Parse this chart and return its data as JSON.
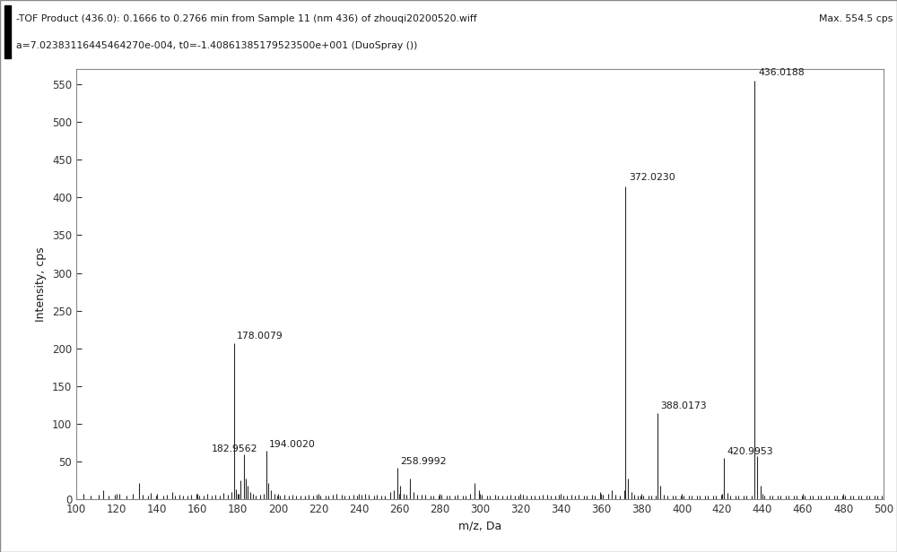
{
  "title_line1": "-TOF Product (436.0): 0.1666 to 0.2766 min from Sample 11 (nm 436) of zhouqi20200520.wiff",
  "title_line2": "a=7.02383116445464270e-004, t0=-1.40861385179523500e+001 (DuoSpray ())",
  "max_label": "Max. 554.5 cps",
  "xlabel": "m/z, Da",
  "ylabel": "Intensity, cps",
  "xlim": [
    100,
    500
  ],
  "ylim": [
    0,
    570
  ],
  "yticks": [
    0,
    50,
    100,
    150,
    200,
    250,
    300,
    350,
    400,
    450,
    500,
    550
  ],
  "xticks": [
    100,
    120,
    140,
    160,
    180,
    200,
    220,
    240,
    260,
    280,
    300,
    320,
    340,
    360,
    380,
    400,
    420,
    440,
    460,
    480,
    500
  ],
  "background_color": "#ffffff",
  "header_color": "#f0f0f0",
  "line_color": "#2a2a2a",
  "peaks": [
    {
      "mz": 103.5,
      "intensity": 8,
      "label": null
    },
    {
      "mz": 107.0,
      "intensity": 5,
      "label": null
    },
    {
      "mz": 111.0,
      "intensity": 7,
      "label": null
    },
    {
      "mz": 113.5,
      "intensity": 13,
      "label": null
    },
    {
      "mz": 116.0,
      "intensity": 5,
      "label": null
    },
    {
      "mz": 119.0,
      "intensity": 6,
      "label": null
    },
    {
      "mz": 121.5,
      "intensity": 8,
      "label": null
    },
    {
      "mz": 125.0,
      "intensity": 5,
      "label": null
    },
    {
      "mz": 128.0,
      "intensity": 8,
      "label": null
    },
    {
      "mz": 131.0,
      "intensity": 22,
      "label": null
    },
    {
      "mz": 133.0,
      "intensity": 7,
      "label": null
    },
    {
      "mz": 135.5,
      "intensity": 5,
      "label": null
    },
    {
      "mz": 137.0,
      "intensity": 9,
      "label": null
    },
    {
      "mz": 139.5,
      "intensity": 5,
      "label": null
    },
    {
      "mz": 143.0,
      "intensity": 5,
      "label": null
    },
    {
      "mz": 145.0,
      "intensity": 7,
      "label": null
    },
    {
      "mz": 147.5,
      "intensity": 10,
      "label": null
    },
    {
      "mz": 149.0,
      "intensity": 5,
      "label": null
    },
    {
      "mz": 151.0,
      "intensity": 6,
      "label": null
    },
    {
      "mz": 153.0,
      "intensity": 5,
      "label": null
    },
    {
      "mz": 155.0,
      "intensity": 5,
      "label": null
    },
    {
      "mz": 157.0,
      "intensity": 6,
      "label": null
    },
    {
      "mz": 159.5,
      "intensity": 8,
      "label": null
    },
    {
      "mz": 161.0,
      "intensity": 5,
      "label": null
    },
    {
      "mz": 163.0,
      "intensity": 5,
      "label": null
    },
    {
      "mz": 165.0,
      "intensity": 8,
      "label": null
    },
    {
      "mz": 167.0,
      "intensity": 5,
      "label": null
    },
    {
      "mz": 169.0,
      "intensity": 6,
      "label": null
    },
    {
      "mz": 171.0,
      "intensity": 5,
      "label": null
    },
    {
      "mz": 173.0,
      "intensity": 9,
      "label": null
    },
    {
      "mz": 175.0,
      "intensity": 7,
      "label": null
    },
    {
      "mz": 177.0,
      "intensity": 10,
      "label": null
    },
    {
      "mz": 178.0079,
      "intensity": 207,
      "label": "178.0079"
    },
    {
      "mz": 179.3,
      "intensity": 14,
      "label": null
    },
    {
      "mz": 180.5,
      "intensity": 8,
      "label": null
    },
    {
      "mz": 181.5,
      "intensity": 25,
      "label": null
    },
    {
      "mz": 182.9562,
      "intensity": 60,
      "label": "182.9562"
    },
    {
      "mz": 184.0,
      "intensity": 28,
      "label": null
    },
    {
      "mz": 185.0,
      "intensity": 18,
      "label": null
    },
    {
      "mz": 186.0,
      "intensity": 10,
      "label": null
    },
    {
      "mz": 187.5,
      "intensity": 8,
      "label": null
    },
    {
      "mz": 189.0,
      "intensity": 5,
      "label": null
    },
    {
      "mz": 191.0,
      "intensity": 6,
      "label": null
    },
    {
      "mz": 193.0,
      "intensity": 8,
      "label": null
    },
    {
      "mz": 194.002,
      "intensity": 65,
      "label": "194.0020"
    },
    {
      "mz": 195.2,
      "intensity": 22,
      "label": null
    },
    {
      "mz": 196.5,
      "intensity": 12,
      "label": null
    },
    {
      "mz": 198.0,
      "intensity": 8,
      "label": null
    },
    {
      "mz": 199.5,
      "intensity": 5,
      "label": null
    },
    {
      "mz": 201.0,
      "intensity": 5,
      "label": null
    },
    {
      "mz": 203.0,
      "intensity": 6,
      "label": null
    },
    {
      "mz": 205.5,
      "intensity": 5,
      "label": null
    },
    {
      "mz": 207.0,
      "intensity": 6,
      "label": null
    },
    {
      "mz": 209.0,
      "intensity": 5,
      "label": null
    },
    {
      "mz": 211.0,
      "intensity": 5,
      "label": null
    },
    {
      "mz": 213.5,
      "intensity": 5,
      "label": null
    },
    {
      "mz": 215.0,
      "intensity": 6,
      "label": null
    },
    {
      "mz": 217.5,
      "intensity": 5,
      "label": null
    },
    {
      "mz": 219.0,
      "intensity": 7,
      "label": null
    },
    {
      "mz": 221.0,
      "intensity": 5,
      "label": null
    },
    {
      "mz": 223.5,
      "intensity": 5,
      "label": null
    },
    {
      "mz": 225.0,
      "intensity": 5,
      "label": null
    },
    {
      "mz": 227.0,
      "intensity": 6,
      "label": null
    },
    {
      "mz": 229.0,
      "intensity": 8,
      "label": null
    },
    {
      "mz": 231.5,
      "intensity": 6,
      "label": null
    },
    {
      "mz": 233.0,
      "intensity": 5,
      "label": null
    },
    {
      "mz": 235.0,
      "intensity": 5,
      "label": null
    },
    {
      "mz": 237.5,
      "intensity": 6,
      "label": null
    },
    {
      "mz": 239.0,
      "intensity": 5,
      "label": null
    },
    {
      "mz": 241.5,
      "intensity": 7,
      "label": null
    },
    {
      "mz": 243.0,
      "intensity": 8,
      "label": null
    },
    {
      "mz": 245.0,
      "intensity": 6,
      "label": null
    },
    {
      "mz": 247.5,
      "intensity": 5,
      "label": null
    },
    {
      "mz": 249.0,
      "intensity": 7,
      "label": null
    },
    {
      "mz": 251.0,
      "intensity": 5,
      "label": null
    },
    {
      "mz": 253.0,
      "intensity": 5,
      "label": null
    },
    {
      "mz": 255.5,
      "intensity": 10,
      "label": null
    },
    {
      "mz": 257.5,
      "intensity": 13,
      "label": null
    },
    {
      "mz": 258.9992,
      "intensity": 42,
      "label": "258.9992"
    },
    {
      "mz": 260.5,
      "intensity": 18,
      "label": null
    },
    {
      "mz": 262.0,
      "intensity": 8,
      "label": null
    },
    {
      "mz": 263.5,
      "intensity": 6,
      "label": null
    },
    {
      "mz": 265.5,
      "intensity": 28,
      "label": null
    },
    {
      "mz": 267.0,
      "intensity": 10,
      "label": null
    },
    {
      "mz": 269.0,
      "intensity": 7,
      "label": null
    },
    {
      "mz": 271.0,
      "intensity": 6,
      "label": null
    },
    {
      "mz": 273.0,
      "intensity": 7,
      "label": null
    },
    {
      "mz": 275.5,
      "intensity": 5,
      "label": null
    },
    {
      "mz": 277.0,
      "intensity": 5,
      "label": null
    },
    {
      "mz": 279.5,
      "intensity": 5,
      "label": null
    },
    {
      "mz": 281.0,
      "intensity": 6,
      "label": null
    },
    {
      "mz": 283.5,
      "intensity": 5,
      "label": null
    },
    {
      "mz": 285.0,
      "intensity": 5,
      "label": null
    },
    {
      "mz": 287.5,
      "intensity": 5,
      "label": null
    },
    {
      "mz": 289.0,
      "intensity": 6,
      "label": null
    },
    {
      "mz": 291.5,
      "intensity": 5,
      "label": null
    },
    {
      "mz": 293.0,
      "intensity": 5,
      "label": null
    },
    {
      "mz": 295.0,
      "intensity": 8,
      "label": null
    },
    {
      "mz": 297.5,
      "intensity": 22,
      "label": null
    },
    {
      "mz": 299.5,
      "intensity": 13,
      "label": null
    },
    {
      "mz": 301.0,
      "intensity": 7,
      "label": null
    },
    {
      "mz": 303.5,
      "intensity": 5,
      "label": null
    },
    {
      "mz": 305.0,
      "intensity": 5,
      "label": null
    },
    {
      "mz": 307.5,
      "intensity": 6,
      "label": null
    },
    {
      "mz": 309.0,
      "intensity": 5,
      "label": null
    },
    {
      "mz": 311.0,
      "intensity": 5,
      "label": null
    },
    {
      "mz": 313.5,
      "intensity": 5,
      "label": null
    },
    {
      "mz": 315.0,
      "intensity": 6,
      "label": null
    },
    {
      "mz": 317.5,
      "intensity": 5,
      "label": null
    },
    {
      "mz": 319.0,
      "intensity": 5,
      "label": null
    },
    {
      "mz": 321.5,
      "intensity": 7,
      "label": null
    },
    {
      "mz": 323.0,
      "intensity": 5,
      "label": null
    },
    {
      "mz": 325.5,
      "intensity": 5,
      "label": null
    },
    {
      "mz": 327.0,
      "intensity": 5,
      "label": null
    },
    {
      "mz": 329.5,
      "intensity": 5,
      "label": null
    },
    {
      "mz": 331.0,
      "intensity": 6,
      "label": null
    },
    {
      "mz": 333.5,
      "intensity": 7,
      "label": null
    },
    {
      "mz": 335.0,
      "intensity": 5,
      "label": null
    },
    {
      "mz": 337.5,
      "intensity": 5,
      "label": null
    },
    {
      "mz": 339.0,
      "intensity": 6,
      "label": null
    },
    {
      "mz": 341.5,
      "intensity": 5,
      "label": null
    },
    {
      "mz": 343.0,
      "intensity": 5,
      "label": null
    },
    {
      "mz": 345.5,
      "intensity": 6,
      "label": null
    },
    {
      "mz": 347.0,
      "intensity": 5,
      "label": null
    },
    {
      "mz": 349.0,
      "intensity": 7,
      "label": null
    },
    {
      "mz": 351.5,
      "intensity": 5,
      "label": null
    },
    {
      "mz": 353.0,
      "intensity": 5,
      "label": null
    },
    {
      "mz": 355.5,
      "intensity": 6,
      "label": null
    },
    {
      "mz": 357.0,
      "intensity": 5,
      "label": null
    },
    {
      "mz": 359.5,
      "intensity": 10,
      "label": null
    },
    {
      "mz": 361.0,
      "intensity": 7,
      "label": null
    },
    {
      "mz": 363.5,
      "intensity": 8,
      "label": null
    },
    {
      "mz": 365.5,
      "intensity": 13,
      "label": null
    },
    {
      "mz": 367.0,
      "intensity": 7,
      "label": null
    },
    {
      "mz": 369.5,
      "intensity": 5,
      "label": null
    },
    {
      "mz": 371.5,
      "intensity": 13,
      "label": null
    },
    {
      "mz": 372.023,
      "intensity": 415,
      "label": "372.0230"
    },
    {
      "mz": 373.5,
      "intensity": 28,
      "label": null
    },
    {
      "mz": 375.0,
      "intensity": 10,
      "label": null
    },
    {
      "mz": 376.5,
      "intensity": 7,
      "label": null
    },
    {
      "mz": 378.0,
      "intensity": 5,
      "label": null
    },
    {
      "mz": 379.5,
      "intensity": 5,
      "label": null
    },
    {
      "mz": 381.0,
      "intensity": 5,
      "label": null
    },
    {
      "mz": 383.5,
      "intensity": 5,
      "label": null
    },
    {
      "mz": 385.0,
      "intensity": 5,
      "label": null
    },
    {
      "mz": 387.0,
      "intensity": 5,
      "label": null
    },
    {
      "mz": 388.0173,
      "intensity": 115,
      "label": "388.0173"
    },
    {
      "mz": 389.5,
      "intensity": 18,
      "label": null
    },
    {
      "mz": 391.0,
      "intensity": 7,
      "label": null
    },
    {
      "mz": 393.0,
      "intensity": 5,
      "label": null
    },
    {
      "mz": 395.5,
      "intensity": 5,
      "label": null
    },
    {
      "mz": 397.0,
      "intensity": 5,
      "label": null
    },
    {
      "mz": 399.5,
      "intensity": 5,
      "label": null
    },
    {
      "mz": 401.0,
      "intensity": 5,
      "label": null
    },
    {
      "mz": 403.5,
      "intensity": 5,
      "label": null
    },
    {
      "mz": 405.0,
      "intensity": 5,
      "label": null
    },
    {
      "mz": 407.5,
      "intensity": 5,
      "label": null
    },
    {
      "mz": 409.0,
      "intensity": 5,
      "label": null
    },
    {
      "mz": 411.5,
      "intensity": 5,
      "label": null
    },
    {
      "mz": 413.0,
      "intensity": 5,
      "label": null
    },
    {
      "mz": 415.5,
      "intensity": 5,
      "label": null
    },
    {
      "mz": 417.0,
      "intensity": 5,
      "label": null
    },
    {
      "mz": 419.5,
      "intensity": 6,
      "label": null
    },
    {
      "mz": 420.9953,
      "intensity": 55,
      "label": "420.9953"
    },
    {
      "mz": 422.5,
      "intensity": 9,
      "label": null
    },
    {
      "mz": 424.0,
      "intensity": 5,
      "label": null
    },
    {
      "mz": 426.5,
      "intensity": 5,
      "label": null
    },
    {
      "mz": 428.0,
      "intensity": 5,
      "label": null
    },
    {
      "mz": 430.5,
      "intensity": 5,
      "label": null
    },
    {
      "mz": 432.0,
      "intensity": 5,
      "label": null
    },
    {
      "mz": 434.5,
      "intensity": 5,
      "label": null
    },
    {
      "mz": 436.0188,
      "intensity": 554.5,
      "label": "436.0188"
    },
    {
      "mz": 437.5,
      "intensity": 58,
      "label": null
    },
    {
      "mz": 439.0,
      "intensity": 18,
      "label": null
    },
    {
      "mz": 441.0,
      "intensity": 5,
      "label": null
    },
    {
      "mz": 443.5,
      "intensity": 5,
      "label": null
    },
    {
      "mz": 445.0,
      "intensity": 5,
      "label": null
    },
    {
      "mz": 447.5,
      "intensity": 5,
      "label": null
    },
    {
      "mz": 449.0,
      "intensity": 5,
      "label": null
    },
    {
      "mz": 451.5,
      "intensity": 5,
      "label": null
    },
    {
      "mz": 453.0,
      "intensity": 5,
      "label": null
    },
    {
      "mz": 455.5,
      "intensity": 5,
      "label": null
    },
    {
      "mz": 457.0,
      "intensity": 5,
      "label": null
    },
    {
      "mz": 459.5,
      "intensity": 5,
      "label": null
    },
    {
      "mz": 461.0,
      "intensity": 5,
      "label": null
    },
    {
      "mz": 463.5,
      "intensity": 5,
      "label": null
    },
    {
      "mz": 465.0,
      "intensity": 5,
      "label": null
    },
    {
      "mz": 467.5,
      "intensity": 5,
      "label": null
    },
    {
      "mz": 469.0,
      "intensity": 5,
      "label": null
    },
    {
      "mz": 471.5,
      "intensity": 5,
      "label": null
    },
    {
      "mz": 473.0,
      "intensity": 5,
      "label": null
    },
    {
      "mz": 475.5,
      "intensity": 5,
      "label": null
    },
    {
      "mz": 477.0,
      "intensity": 5,
      "label": null
    },
    {
      "mz": 479.5,
      "intensity": 5,
      "label": null
    },
    {
      "mz": 481.0,
      "intensity": 5,
      "label": null
    },
    {
      "mz": 483.5,
      "intensity": 5,
      "label": null
    },
    {
      "mz": 485.0,
      "intensity": 5,
      "label": null
    },
    {
      "mz": 487.5,
      "intensity": 5,
      "label": null
    },
    {
      "mz": 489.0,
      "intensity": 5,
      "label": null
    },
    {
      "mz": 491.5,
      "intensity": 5,
      "label": null
    },
    {
      "mz": 493.0,
      "intensity": 5,
      "label": null
    },
    {
      "mz": 495.5,
      "intensity": 5,
      "label": null
    },
    {
      "mz": 497.0,
      "intensity": 5,
      "label": null
    },
    {
      "mz": 499.0,
      "intensity": 5,
      "label": null
    }
  ],
  "border_color": "#888888",
  "tick_color": "#333333",
  "label_color": "#1a1a1a",
  "title_fontsize": 7.8,
  "axis_label_fontsize": 9,
  "tick_fontsize": 8.5,
  "peak_label_fontsize": 7.8,
  "label_offsets": {
    "178.0079": [
      1.5,
      4
    ],
    "182.9562": [
      -16,
      1
    ],
    "194.0020": [
      1.5,
      2
    ],
    "258.9992": [
      1.5,
      3
    ],
    "372.0230": [
      2,
      5
    ],
    "388.0173": [
      1.5,
      3
    ],
    "420.9953": [
      1.5,
      3
    ],
    "436.0188": [
      2,
      5
    ]
  }
}
